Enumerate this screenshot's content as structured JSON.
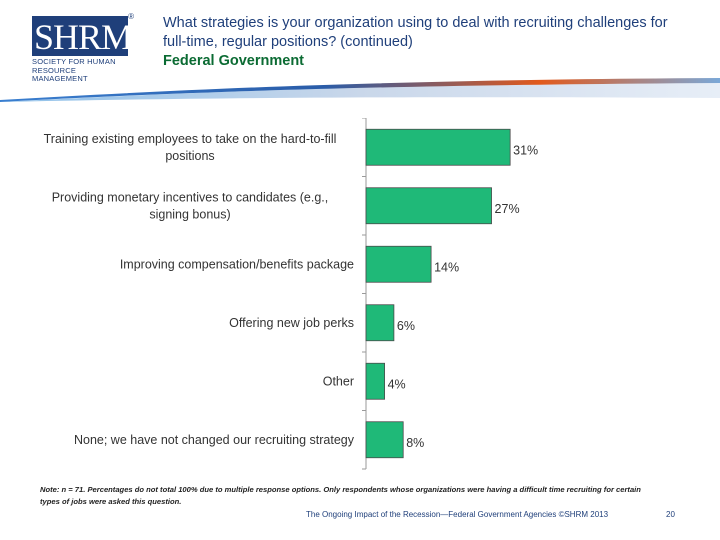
{
  "header": {
    "logo_text": "SHRM",
    "logo_sub_line1": "SOCIETY FOR HUMAN",
    "logo_sub_line2": "RESOURCE MANAGEMENT",
    "logo_reg": "®",
    "title": "What strategies is your organization using to deal with recruiting challenges for full-time, regular positions? (continued)",
    "subtitle": "Federal Government"
  },
  "colors": {
    "bar": "#1fb978",
    "navy": "#1f3f7a",
    "green_text": "#0b6b33"
  },
  "chart_data": {
    "type": "bar",
    "orientation": "horizontal",
    "categories": [
      [
        "Training existing employees to take on the hard-to-fill",
        "positions"
      ],
      [
        "Providing monetary incentives to candidates (e.g.,",
        "signing bonus)"
      ],
      [
        "Improving compensation/benefits package"
      ],
      [
        "Offering new job perks"
      ],
      [
        "Other"
      ],
      [
        "None; we have not changed our recruiting strategy"
      ]
    ],
    "values": [
      31,
      27,
      14,
      6,
      4,
      8
    ],
    "value_labels": [
      "31%",
      "27%",
      "14%",
      "6%",
      "4%",
      "8%"
    ],
    "xlim": [
      0,
      40
    ],
    "grid": false
  },
  "note": "Note: n = 71. Percentages do not total 100% due to multiple response options. Only respondents whose organizations were having a difficult time recruiting for certain types of jobs were asked this question.",
  "footer": {
    "text": "The Ongoing Impact of the Recession—Federal Government Agencies ©SHRM 2013",
    "page": "20"
  }
}
